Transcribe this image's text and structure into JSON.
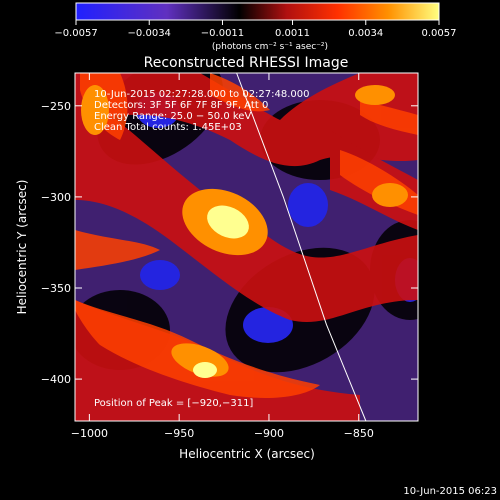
{
  "chart_data": {
    "type": "heatmap",
    "title": "Reconstructed RHESSI Image",
    "xlabel": "Heliocentric X (arcsec)",
    "ylabel": "Heliocentric Y (arcsec)",
    "xlim": [
      -1008,
      -817
    ],
    "ylim": [
      -423,
      -232
    ],
    "x_ticks": [
      -1000,
      -950,
      -900,
      -850
    ],
    "y_ticks": [
      -250,
      -300,
      -350,
      -400
    ],
    "x_tick_labels": [
      "−1000",
      "−950",
      "−900",
      "−850"
    ],
    "y_tick_labels": [
      "−250",
      "−300",
      "−350",
      "−400"
    ],
    "colorbar": {
      "min": -0.0057,
      "max": 0.0057,
      "ticks": [
        -0.0057,
        -0.0034,
        -0.0011,
        0.0011,
        0.0034,
        0.0057
      ],
      "tick_labels": [
        "−0.0057",
        "−0.0034",
        "−0.0011",
        "0.0011",
        "0.0034",
        "0.0057"
      ],
      "label": "(photons cm⁻² s⁻¹ asec⁻²)",
      "colors": [
        "#2020ff",
        "#6030c0",
        "#000000",
        "#b01010",
        "#ff3000",
        "#ff9000",
        "#ffff80"
      ]
    },
    "annotations": {
      "time_range": "10-Jun-2015 02:27:28.000 to 02:27:48.000",
      "detectors": "Detectors: 3F 5F 6F 7F 8F 9F, Att 0",
      "energy_range": "Energy Range: 25.0 − 50.0 keV",
      "clean": "Clean    Total counts: 1.45E+03",
      "peak": "Position of Peak = [−920,−311]"
    },
    "peak": {
      "x": -920,
      "y": -311
    },
    "limb_curve": {
      "x": [
        -918,
        -892,
        -868,
        -846
      ],
      "y": [
        -232,
        -300,
        -370,
        -423
      ]
    }
  },
  "footer": {
    "timestamp": "10-Jun-2015 06:23"
  }
}
